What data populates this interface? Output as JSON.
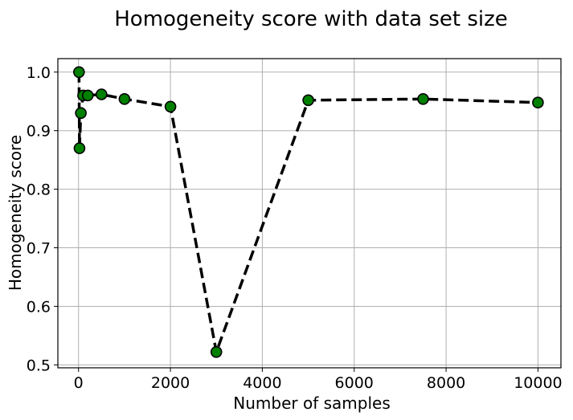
{
  "chart_data": {
    "type": "line",
    "title": "Homogeneity score with data set size",
    "xlabel": "Number of samples",
    "ylabel": "Homogeneity score",
    "xlim": [
      -450,
      10500
    ],
    "ylim": [
      0.495,
      1.023
    ],
    "xticks": [
      0,
      2000,
      4000,
      6000,
      8000,
      10000
    ],
    "yticks": [
      0.5,
      0.6,
      0.7,
      0.8,
      0.9,
      1.0
    ],
    "xtick_labels": [
      "0",
      "2000",
      "4000",
      "6000",
      "8000",
      "10000"
    ],
    "ytick_labels": [
      "0.5",
      "0.6",
      "0.7",
      "0.8",
      "0.9",
      "1.0"
    ],
    "grid": true,
    "series": [
      {
        "line_style": "dashed",
        "line_color": "#000000",
        "marker_color": "#008000",
        "marker_edge_color": "#000000",
        "x": [
          10,
          20,
          50,
          100,
          200,
          500,
          1000,
          2000,
          3000,
          5000,
          7500,
          10000
        ],
        "y": [
          1.0,
          0.87,
          0.93,
          0.96,
          0.96,
          0.962,
          0.954,
          0.941,
          0.522,
          0.952,
          0.954,
          0.948
        ]
      }
    ]
  }
}
